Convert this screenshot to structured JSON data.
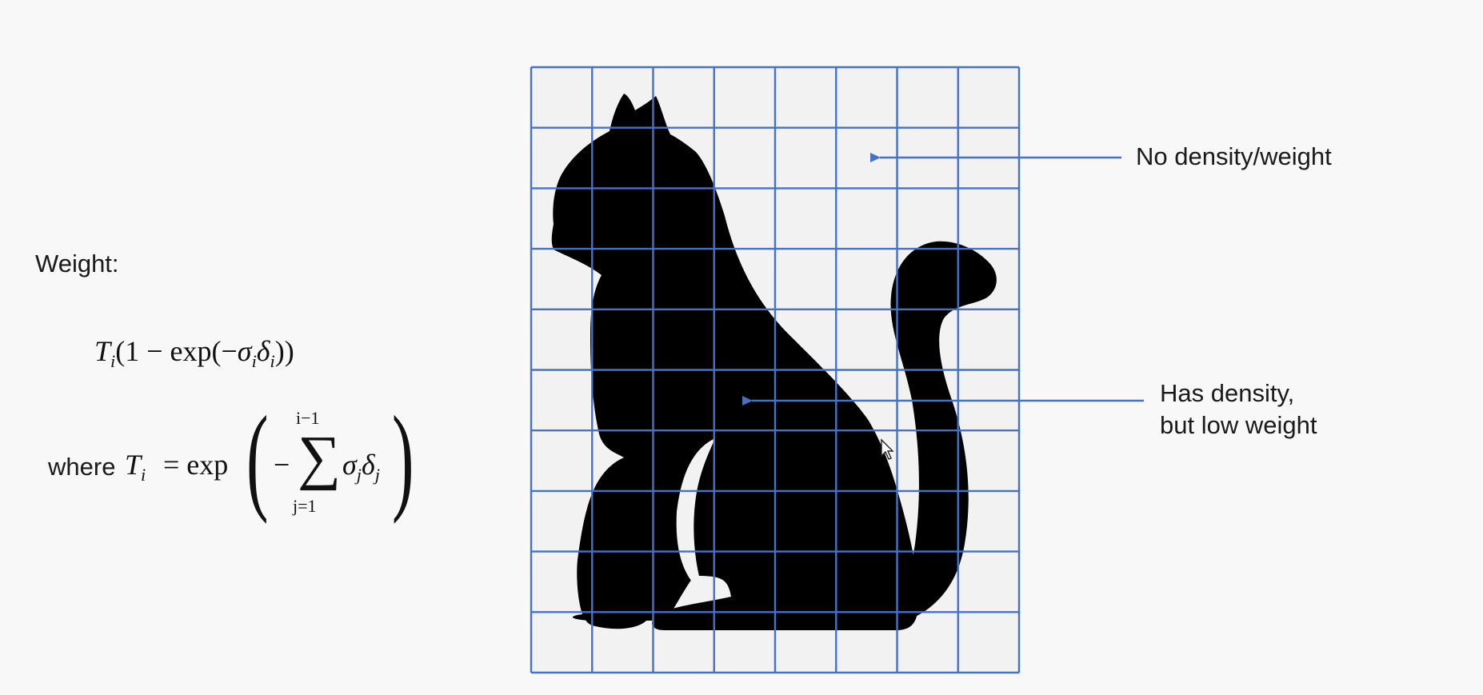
{
  "weight_heading": "Weight:",
  "formula": {
    "where_word": "where",
    "weight_expr": "T_i(1 - exp(-σ_i δ_i))",
    "transmittance_expr": "T_i = exp(-Σ_{j=1}^{i-1} σ_j δ_j)",
    "sum_upper": "i−1",
    "sum_lower": "j=1"
  },
  "annotations": {
    "top": "No density/weight",
    "middle_line1": "Has density,",
    "middle_line2": "but low weight"
  },
  "grid": {
    "columns": 8,
    "rows": 10
  },
  "colors": {
    "grid_line": "#4472c4",
    "silhouette": "#000000",
    "grid_cell": "#f2f2f2",
    "background": "#f8f8f8"
  }
}
